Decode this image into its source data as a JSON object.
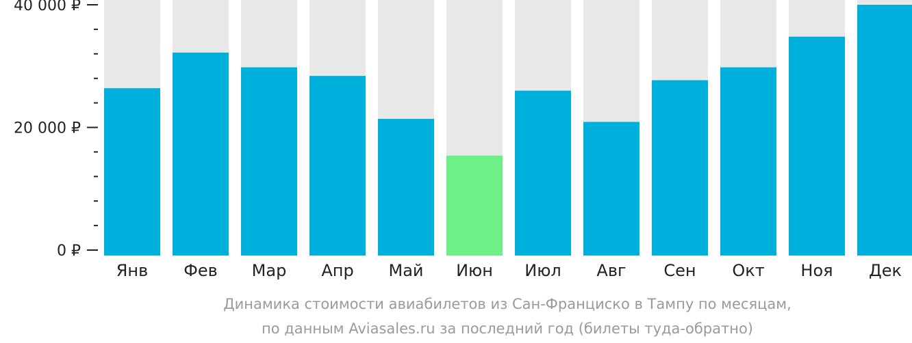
{
  "chart_data": {
    "type": "bar",
    "categories": [
      "Янв",
      "Фев",
      "Мар",
      "Апр",
      "Май",
      "Июн",
      "Июл",
      "Авг",
      "Сен",
      "Окт",
      "Ноя",
      "Дек"
    ],
    "values": [
      26400,
      32200,
      29800,
      28400,
      21400,
      15400,
      26000,
      20900,
      27700,
      29800,
      34800,
      40000
    ],
    "ylim": [
      0,
      40000
    ],
    "yticks": [
      {
        "value": 0,
        "label": "0 ₽"
      },
      {
        "value": 20000,
        "label": "20 000 ₽"
      },
      {
        "value": 40000,
        "label": "40 000 ₽"
      }
    ],
    "minor_ticks_per_major": 5,
    "highlight_index": 5,
    "colors": {
      "bar": "#00b0dc",
      "highlight": "#6cf087",
      "background_bar": "#e8e8e8",
      "axis": "#222222"
    },
    "caption": [
      "Динамика стоимости авиабилетов из Сан-Франциско в Тампу по месяцам,",
      "по данным Aviasales.ru за последний год (билеты туда-обратно)"
    ]
  }
}
